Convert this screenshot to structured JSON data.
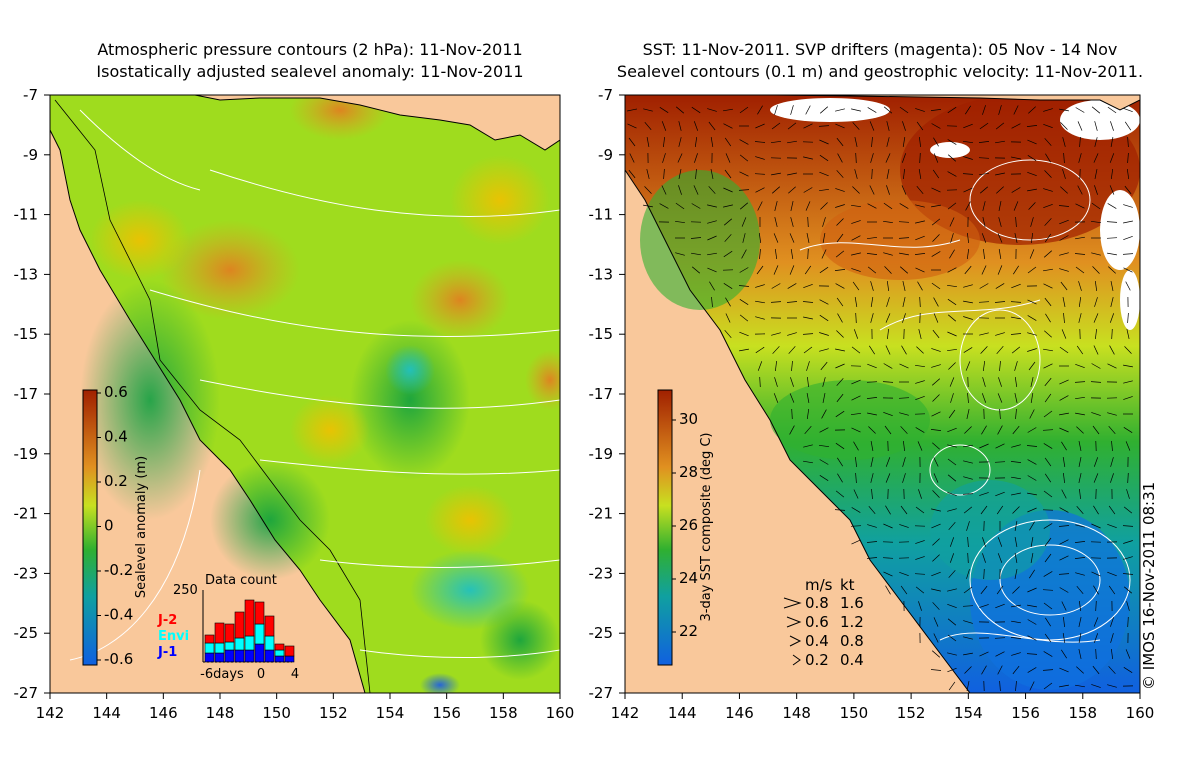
{
  "left_panel": {
    "title_line1": "Atmospheric pressure contours (2 hPa): 11-Nov-2011",
    "title_line2": "Isostatically adjusted sealevel anomaly: 11-Nov-2011",
    "colorbar_label": "Sealevel anomaly (m)",
    "colorbar_ticks": [
      "0.6",
      "0.4",
      "0.2",
      "0",
      "-0.2",
      "-0.4",
      "-0.6"
    ],
    "colorbar_colors": [
      "#8b0000",
      "#d2691e",
      "#ffd700",
      "#7fff00",
      "#1aa01a",
      "#00bfbf",
      "#1e90ff",
      "#00008b"
    ],
    "inset": {
      "title": "Data count",
      "ymax_label": "250",
      "series": [
        {
          "name": "J-2",
          "color": "#ff0000"
        },
        {
          "name": "Envi",
          "color": "#00ffff"
        },
        {
          "name": "J-1",
          "color": "#0000ff"
        }
      ],
      "x_labels": [
        "-6days",
        "0",
        "4"
      ]
    }
  },
  "right_panel": {
    "title_line1": "SST: 11-Nov-2011. SVP drifters (magenta): 05 Nov - 14 Nov",
    "title_line2": "Sealevel contours (0.1 m) and geostrophic velocity: 11-Nov-2011.",
    "colorbar_label": "3-day SST composite (deg C)",
    "colorbar_ticks": [
      "30",
      "28",
      "26",
      "24",
      "22"
    ],
    "colorbar_colors": [
      "#8b0000",
      "#d2691e",
      "#ffd700",
      "#7fff00",
      "#1aa01a",
      "#00bfbf",
      "#1e90ff",
      "#00008b"
    ],
    "velocity_key": {
      "header_ms": "m/s",
      "header_kt": "kt",
      "rows": [
        {
          "ms": "0.8",
          "kt": "1.6"
        },
        {
          "ms": "0.6",
          "kt": "1.2"
        },
        {
          "ms": "0.4",
          "kt": "0.8"
        },
        {
          "ms": "0.2",
          "kt": "0.4"
        }
      ]
    }
  },
  "axes": {
    "x_ticks": [
      "142",
      "144",
      "146",
      "148",
      "150",
      "152",
      "154",
      "156",
      "158",
      "160"
    ],
    "y_ticks": [
      "-7",
      "-9",
      "-11",
      "-13",
      "-15",
      "-17",
      "-19",
      "-21",
      "-23",
      "-25",
      "-27"
    ],
    "lon_range": [
      142,
      160
    ],
    "lat_range": [
      -27,
      -7
    ]
  },
  "colors": {
    "land": "#f9c89b",
    "contour": "#ffffff"
  },
  "credit": "© IMOS 16-Nov-2011 08:31"
}
